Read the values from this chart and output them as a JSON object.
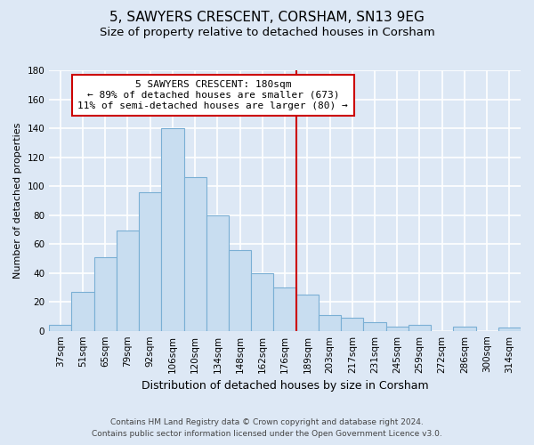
{
  "title": "5, SAWYERS CRESCENT, CORSHAM, SN13 9EG",
  "subtitle": "Size of property relative to detached houses in Corsham",
  "xlabel": "Distribution of detached houses by size in Corsham",
  "ylabel": "Number of detached properties",
  "footer_line1": "Contains HM Land Registry data © Crown copyright and database right 2024.",
  "footer_line2": "Contains public sector information licensed under the Open Government Licence v3.0.",
  "categories": [
    "37sqm",
    "51sqm",
    "65sqm",
    "79sqm",
    "92sqm",
    "106sqm",
    "120sqm",
    "134sqm",
    "148sqm",
    "162sqm",
    "176sqm",
    "189sqm",
    "203sqm",
    "217sqm",
    "231sqm",
    "245sqm",
    "259sqm",
    "272sqm",
    "286sqm",
    "300sqm",
    "314sqm"
  ],
  "values": [
    4,
    27,
    51,
    69,
    96,
    140,
    106,
    80,
    56,
    40,
    30,
    25,
    11,
    9,
    6,
    3,
    4,
    0,
    3,
    0,
    2
  ],
  "bar_color": "#c8ddf0",
  "bar_edge_color": "#7aafd4",
  "vline_x": 10.5,
  "vline_color": "#cc0000",
  "annotation_title": "5 SAWYERS CRESCENT: 180sqm",
  "annotation_line1": "← 89% of detached houses are smaller (673)",
  "annotation_line2": "11% of semi-detached houses are larger (80) →",
  "annotation_box_color": "#ffffff",
  "annotation_box_edge_color": "#cc0000",
  "ylim": [
    0,
    180
  ],
  "yticks": [
    0,
    20,
    40,
    60,
    80,
    100,
    120,
    140,
    160,
    180
  ],
  "bg_color": "#dde8f5",
  "plot_bg_color": "#dde8f5",
  "grid_color": "#ffffff",
  "title_fontsize": 11,
  "subtitle_fontsize": 9.5,
  "xlabel_fontsize": 9,
  "ylabel_fontsize": 8,
  "tick_fontsize": 7.5,
  "annotation_fontsize": 8,
  "footer_fontsize": 6.5
}
